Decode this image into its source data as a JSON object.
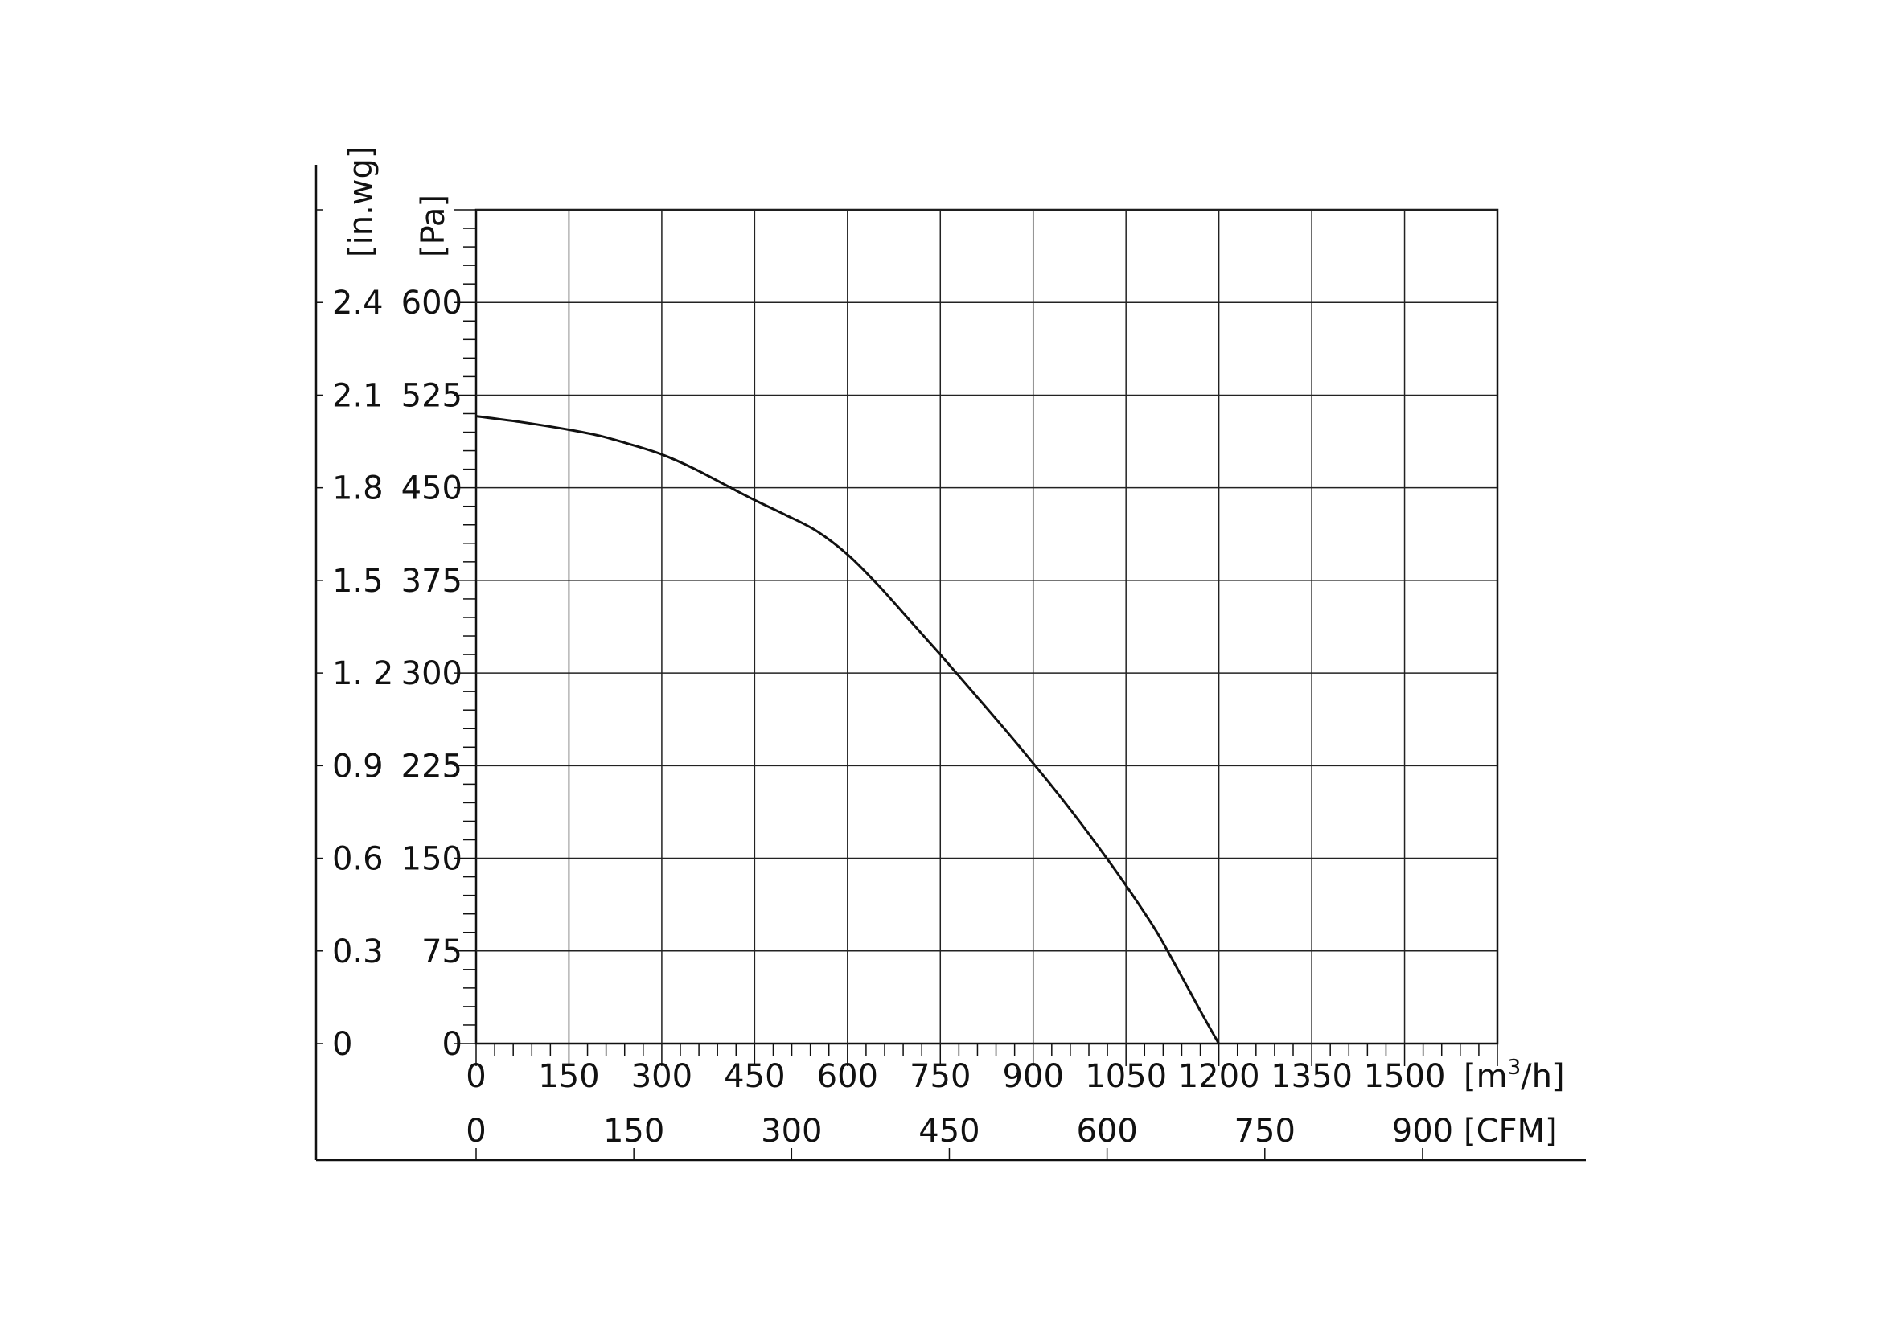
{
  "chart_data": {
    "type": "line",
    "title": "",
    "x_axes": {
      "primary": {
        "unit_label": "[m",
        "unit_superscript": "3",
        "unit_suffix": "/h]",
        "range": [
          0,
          1650
        ],
        "ticks": [
          0,
          150,
          300,
          450,
          600,
          750,
          900,
          1050,
          1200,
          1350,
          1500
        ],
        "tick_labels": [
          "0",
          "150",
          "300",
          "450",
          "600",
          "750",
          "900",
          "1050",
          "1200",
          "1350",
          "1500"
        ]
      },
      "secondary": {
        "unit_label": "[CFM]",
        "ticks": [
          0,
          150,
          300,
          450,
          600,
          750,
          900
        ],
        "tick_labels": [
          "0",
          "150",
          "300",
          "450",
          "600",
          "750",
          "900"
        ]
      }
    },
    "y_axes": {
      "primary": {
        "unit_label": "[Pa]",
        "range": [
          0,
          675
        ],
        "ticks": [
          0,
          75,
          150,
          225,
          300,
          375,
          450,
          525,
          600
        ],
        "tick_labels": [
          "0",
          "75",
          "150",
          "225",
          "300",
          "375",
          "450",
          "525",
          "600"
        ]
      },
      "secondary": {
        "unit_label": "[in.wg]",
        "tick_labels": [
          "0",
          "0.3",
          "0.6",
          "0.9",
          "1. 2",
          "1.5",
          "1.8",
          "2.1",
          "2.4"
        ]
      }
    },
    "grid": true,
    "series": [
      {
        "x": [
          0,
          75,
          150,
          200,
          250,
          300,
          350,
          400,
          450,
          500,
          550,
          600,
          650,
          700,
          750,
          800,
          850,
          900,
          950,
          1000,
          1050,
          1100,
          1150,
          1175,
          1200
        ],
        "y": [
          508,
          503,
          497,
          492,
          485,
          477,
          466,
          453,
          440,
          428,
          415,
          396,
          371,
          343,
          315,
          286,
          257,
          227,
          196,
          163,
          128,
          90,
          45,
          22,
          0
        ]
      }
    ]
  }
}
